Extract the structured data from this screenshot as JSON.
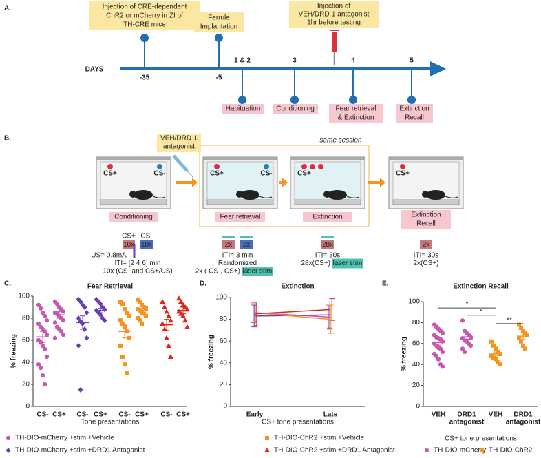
{
  "panel_a": {
    "label": "A.",
    "boxes_top": [
      [
        "Injection of CRE-dependent",
        "ChR2 or mCherry in ZI of",
        "TH-CRE mice"
      ],
      [
        "Ferrule",
        "Implantation"
      ],
      [
        "Injection of",
        "VEH/DRD-1 antagonist",
        "1hr before testing"
      ]
    ],
    "axis_label": "DAYS",
    "days": [
      "-35",
      "-5",
      "1 & 2",
      "3",
      "4",
      "5"
    ],
    "boxes_bottom": [
      [
        "Habituation"
      ],
      [
        "Conditioning"
      ],
      [
        "Fear retrieval",
        "& Extinction"
      ],
      [
        "Extinction",
        "Recall"
      ]
    ]
  },
  "panel_b": {
    "label": "B.",
    "drug": [
      "VEH/DRD-1",
      "antagonist"
    ],
    "session_note": "same session",
    "cages": [
      {
        "cues": [
          "CS+",
          "CS-"
        ],
        "title": [
          "Conditioning"
        ]
      },
      {
        "cues": [
          "CS+",
          "CS-"
        ],
        "title": [
          "Fear retrieval"
        ]
      },
      {
        "cues": [
          "CS+"
        ],
        "title": [
          "Extinction"
        ]
      },
      {
        "cues": [
          "CS+"
        ],
        "title": [
          "Extinction",
          "Recall"
        ]
      }
    ],
    "protocols": [
      {
        "cues": [
          "CS+",
          "CS-"
        ],
        "blocks": [
          "10x",
          "10x"
        ],
        "us": "US= 0.8mA",
        "lines": [
          "ITI= [2 4 6] min",
          "10x (CS- and CS+/US)"
        ]
      },
      {
        "blocks": [
          "2x",
          "2x"
        ],
        "lines": [
          "ITI= 3 min",
          "Randomized",
          "2x ( CS-, CS+)"
        ],
        "stim": "laser stim"
      },
      {
        "blocks": [
          "28x"
        ],
        "lines": [
          "ITI= 30s",
          "28x(CS+)"
        ],
        "stim": "laser stim"
      },
      {
        "blocks": [
          "2x"
        ],
        "lines": [
          "ITI= 30s",
          "2x(CS+)"
        ]
      }
    ]
  },
  "chart_data": [
    {
      "type": "strip",
      "panel": "C.",
      "title": "Fear Retrieval",
      "y_label": "% freezing",
      "x_label": "Tone presentations",
      "ylim": [
        0,
        100
      ],
      "yticks": [
        0,
        20,
        40,
        60,
        80,
        100
      ],
      "categories": [
        "CS-",
        "CS+",
        "CS-",
        "CS+",
        "CS-",
        "CS+",
        "CS-",
        "CS+"
      ],
      "series": [
        {
          "name": "TH-DIO-mCherry +stim +Vehicle",
          "color": "#c45bb0",
          "marker": "circle",
          "values": [
            [
              92,
              89,
              85,
              82,
              78,
              75,
              72,
              70,
              68,
              65,
              60,
              58,
              55,
              52,
              45,
              38,
              35,
              28,
              20
            ],
            [
              95,
              93,
              90,
              88,
              86,
              85,
              84,
              82,
              80,
              78,
              76,
              72,
              70,
              68,
              65,
              62
            ],
            null,
            null,
            null,
            null,
            null,
            null
          ],
          "mean": [
            63,
            83,
            null,
            null,
            null,
            null,
            null,
            null
          ],
          "sem": [
            5,
            3,
            null,
            null,
            null,
            null,
            null,
            null
          ]
        },
        {
          "name": "TH-DIO-mCherry +stim +DRD1 Antagonist",
          "color": "#6a3fb5",
          "marker": "diamond",
          "values": [
            null,
            null,
            [
              97,
              95,
              92,
              90,
              85,
              80,
              77,
              75,
              70,
              62,
              55,
              15
            ],
            [
              97,
              95,
              93,
              90,
              88,
              87,
              85,
              83,
              80,
              78
            ],
            null,
            null,
            null,
            null
          ],
          "mean": [
            null,
            null,
            76,
            87,
            null,
            null,
            null,
            null
          ],
          "sem": [
            null,
            null,
            6,
            2,
            null,
            null,
            null,
            null
          ]
        },
        {
          "name": "TH-DIO-ChR2 +stim +Vehicle",
          "color": "#f7931e",
          "marker": "square",
          "values": [
            null,
            null,
            null,
            null,
            [
              95,
              93,
              88,
              85,
              82,
              78,
              75,
              72,
              68,
              62,
              55,
              45,
              38,
              30
            ],
            [
              97,
              95,
              92,
              90,
              89,
              88,
              87,
              85,
              84,
              82,
              80,
              78,
              75
            ],
            null,
            null
          ],
          "mean": [
            null,
            null,
            null,
            null,
            68,
            87,
            null,
            null
          ],
          "sem": [
            null,
            null,
            null,
            null,
            6,
            2,
            null,
            null
          ]
        },
        {
          "name": "TH-DIO-ChR2 +stim +DRD1 Antagonist",
          "color": "#e0261b",
          "marker": "triangle",
          "values": [
            null,
            null,
            null,
            null,
            null,
            null,
            [
              95,
              90,
              86,
              82,
              78,
              75,
              70,
              62,
              55,
              45
            ],
            [
              98,
              95,
              92,
              90,
              88,
              86,
              84,
              82,
              78,
              72
            ]
          ],
          "mean": [
            null,
            null,
            null,
            null,
            null,
            null,
            74,
            87
          ],
          "sem": [
            null,
            null,
            null,
            null,
            null,
            null,
            5,
            3
          ]
        }
      ]
    },
    {
      "type": "line",
      "panel": "D.",
      "title": "Extinction",
      "y_label": "% freezing",
      "x_label": "CS+ tone presentations",
      "ylim": [
        0,
        100
      ],
      "yticks": [
        0,
        20,
        40,
        60,
        80,
        100
      ],
      "categories": [
        "Early",
        "Late"
      ],
      "series": [
        {
          "color": "#c45bb0",
          "values": [
            86,
            82
          ],
          "errors": [
            9,
            11
          ]
        },
        {
          "color": "#6a3fb5",
          "values": [
            83,
            84
          ],
          "errors": [
            10,
            12
          ]
        },
        {
          "color": "#f7931e",
          "values": [
            86,
            80
          ],
          "errors": [
            8,
            13
          ]
        },
        {
          "color": "#e0261b",
          "values": [
            85,
            89
          ],
          "errors": [
            11,
            10
          ]
        }
      ]
    },
    {
      "type": "strip",
      "panel": "E.",
      "title": "Extinction Recall",
      "y_label": "% freezing",
      "x_label": "CS+ tone presentations",
      "ylim": [
        0,
        100
      ],
      "yticks": [
        0,
        20,
        40,
        60,
        80,
        100
      ],
      "categories": [
        [
          "VEH"
        ],
        [
          "DRD1",
          "antagonist"
        ],
        [
          "VEH"
        ],
        [
          "DRD1",
          "antagonist"
        ]
      ],
      "series": [
        {
          "name": "TH-DIO-mCherry",
          "color": "#c45bb0",
          "marker": "circle",
          "values": [
            [
              78,
              76,
              74,
              72,
              70,
              68,
              66,
              65,
              64,
              62,
              60,
              58,
              56,
              55,
              52,
              50,
              48,
              45,
              40,
              38
            ],
            [
              82,
              72,
              70,
              68,
              66,
              65,
              63,
              62,
              60,
              58,
              55,
              52
            ],
            null,
            null
          ],
          "mean": [
            61,
            64,
            null,
            null
          ],
          "sem": [
            2.5,
            2.5,
            null,
            null
          ]
        },
        {
          "name": "TH-DIO-ChR2",
          "color": "#f7931e",
          "marker": "square",
          "values": [
            null,
            null,
            [
              62,
              58,
              55,
              52,
              50,
              48,
              46,
              45,
              42,
              40
            ],
            [
              78,
              75,
              72,
              70,
              68,
              65,
              62,
              58,
              55
            ]
          ],
          "mean": [
            null,
            null,
            50,
            67
          ],
          "sem": [
            null,
            null,
            2,
            3
          ]
        }
      ],
      "annotations": [
        "*",
        "*",
        "**"
      ]
    }
  ]
}
